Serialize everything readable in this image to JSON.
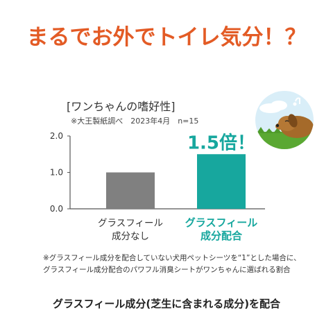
{
  "headline": "まるでお外でトイレ気分！？",
  "chart_title": "[ワンちゃんの嗜好性]",
  "chart_source": "※大王製紙調べ　2023年4月　n=15",
  "chart_data": {
    "type": "bar",
    "categories": [
      [
        "グラスフィール",
        "成分なし"
      ],
      [
        "グラスフィール",
        "成分配合"
      ]
    ],
    "values": [
      1.0,
      1.5
    ],
    "value_labels": [
      "",
      "1.5倍！"
    ],
    "ylim": [
      0,
      2.0
    ],
    "yticks": [
      "0.0",
      "1.0",
      "2.0"
    ],
    "ytick_values": [
      0,
      1.0,
      2.0
    ],
    "grid": false,
    "xlabel": "",
    "ylabel": "",
    "colors": {
      "bar_default": "#808080",
      "bar_highlight": "#17a79e",
      "label_default": "#333333",
      "label_highlight": "#17a79e",
      "axis": "#555555"
    }
  },
  "footnote": [
    "※グラスフィール成分を配合していない犬用ペットシーツを“1”とした場合に、",
    "グラスフィール成分配合のパワフル消臭シートがワンちゃんに選ばれる割合"
  ],
  "bottom_text": "グラスフィール成分(芝生に含まれる成分)を配合",
  "illustration": "dog-on-grass-icon"
}
